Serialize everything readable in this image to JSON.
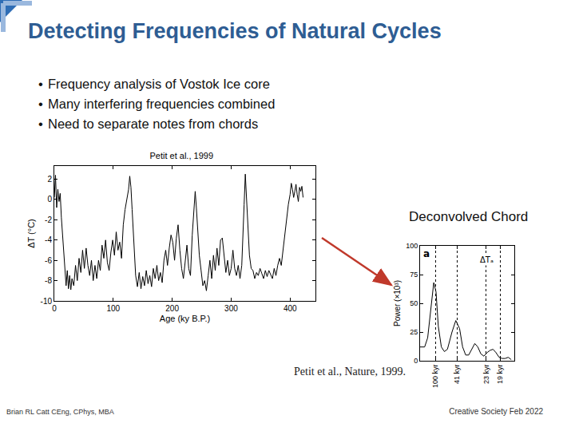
{
  "slide": {
    "title": "Detecting Frequencies of Natural Cycles",
    "bullets": [
      "Frequency analysis of Vostok Ice core",
      "Many interfering frequencies combined",
      "Need to separate notes from chords"
    ],
    "chart_label": "Deconvolved Chord",
    "source": "Petit et al., Nature, 1999.",
    "footer_left": "Brian RL Catt CEng, CPhys, MBA",
    "footer_right": "Creative Society Feb 2022"
  },
  "chart_data": [
    {
      "type": "line",
      "title": "Petit et al., 1999",
      "x_label": "Age (ky B.P.)",
      "y_label": "ΔT (°C)",
      "color": "#000000",
      "x": [
        0,
        2,
        4,
        6,
        8,
        10,
        12,
        14,
        16,
        18,
        20,
        22,
        24,
        26,
        28,
        30,
        33,
        36,
        39,
        42,
        45,
        48,
        51,
        54,
        57,
        60,
        63,
        66,
        69,
        72,
        75,
        78,
        81,
        84,
        87,
        90,
        93,
        96,
        99,
        102,
        105,
        108,
        111,
        114,
        117,
        120,
        123,
        126,
        128,
        130,
        132,
        134,
        136,
        138,
        141,
        144,
        147,
        150,
        153,
        156,
        159,
        162,
        165,
        168,
        171,
        174,
        177,
        180,
        183,
        186,
        189,
        192,
        195,
        198,
        201,
        204,
        207,
        210,
        213,
        216,
        219,
        222,
        225,
        228,
        231,
        234,
        237,
        239,
        241,
        243,
        246,
        249,
        252,
        255,
        258,
        261,
        264,
        267,
        270,
        273,
        276,
        279,
        282,
        285,
        288,
        291,
        294,
        297,
        300,
        303,
        306,
        309,
        312,
        315,
        318,
        320,
        322,
        324,
        326,
        328,
        331,
        334,
        337,
        340,
        343,
        346,
        349,
        352,
        355,
        358,
        361,
        364,
        367,
        370,
        373,
        376,
        379,
        382,
        385,
        388,
        391,
        394,
        397,
        400,
        402,
        404,
        406,
        408,
        410,
        412,
        414,
        416,
        418,
        420,
        422
      ],
      "values": [
        0.2,
        2.4,
        -0.8,
        1.0,
        -0.2,
        0.6,
        -1.8,
        -3.5,
        -5.5,
        -7.2,
        -8.5,
        -7.0,
        -8.8,
        -7.5,
        -8.9,
        -7.8,
        -8.5,
        -6.5,
        -8.0,
        -5.8,
        -7.2,
        -5.0,
        -6.8,
        -4.8,
        -6.5,
        -7.5,
        -6.0,
        -8.0,
        -6.5,
        -7.8,
        -6.0,
        -7.0,
        -4.5,
        -5.8,
        -4.0,
        -6.2,
        -7.0,
        -5.2,
        -4.0,
        -5.5,
        -3.2,
        -5.0,
        -4.2,
        -5.8,
        -2.5,
        -1.0,
        0.2,
        1.0,
        2.3,
        1.2,
        -1.0,
        -3.5,
        -5.8,
        -7.5,
        -8.6,
        -7.2,
        -8.8,
        -7.6,
        -8.5,
        -7.0,
        -8.3,
        -7.5,
        -8.6,
        -6.8,
        -7.8,
        -6.5,
        -8.0,
        -7.2,
        -8.2,
        -6.0,
        -5.0,
        -6.5,
        -4.8,
        -3.5,
        -4.2,
        -6.0,
        -3.8,
        -2.5,
        -5.0,
        -6.8,
        -7.8,
        -6.0,
        -4.5,
        -6.8,
        -7.5,
        -3.5,
        -0.5,
        0.8,
        -0.8,
        -3.0,
        -5.5,
        -7.0,
        -8.5,
        -8.0,
        -9.0,
        -7.5,
        -6.0,
        -7.8,
        -5.5,
        -7.0,
        -4.8,
        -6.5,
        -4.0,
        -3.8,
        -5.5,
        -7.2,
        -6.0,
        -7.5,
        -6.8,
        -5.0,
        -6.8,
        -7.5,
        -6.5,
        -7.8,
        -6.5,
        -4.0,
        -0.5,
        2.5,
        0.0,
        -3.0,
        -5.5,
        -6.8,
        -7.0,
        -7.8,
        -7.2,
        -7.5,
        -6.8,
        -7.3,
        -7.8,
        -7.0,
        -7.6,
        -7.0,
        -7.4,
        -7.8,
        -6.8,
        -7.5,
        -6.5,
        -5.8,
        -6.5,
        -5.0,
        -3.5,
        -2.0,
        -0.5,
        0.5,
        1.6,
        1.0,
        0.2,
        0.8,
        1.5,
        0.5,
        -0.2,
        1.2,
        0.8,
        1.3,
        0.2
      ],
      "xlim": [
        0,
        443
      ],
      "xticks": [
        0,
        100,
        200,
        300,
        400
      ],
      "ylim": [
        -10,
        3.3
      ],
      "yticks": [
        -10,
        -8,
        -6,
        -4,
        -2,
        0,
        2
      ],
      "grid": false
    },
    {
      "type": "line",
      "y_label": "Power (×10³)",
      "annotations": [
        "a",
        "ΔTₐ"
      ],
      "color": "#000000",
      "x": [
        0,
        0.003,
        0.005,
        0.007,
        0.009,
        0.0105,
        0.012,
        0.014,
        0.016,
        0.018,
        0.021,
        0.0235,
        0.026,
        0.028,
        0.03,
        0.032,
        0.034,
        0.036,
        0.038,
        0.04,
        0.042,
        0.044,
        0.046,
        0.048,
        0.05,
        0.052,
        0.054,
        0.056,
        0.058,
        0.06
      ],
      "values": [
        12,
        12,
        20,
        45,
        68,
        60,
        30,
        12,
        8,
        10,
        25,
        35,
        28,
        12,
        5,
        5,
        10,
        15,
        12,
        6,
        4,
        7,
        9,
        10,
        7,
        3,
        2,
        2,
        3,
        1
      ],
      "xlim": [
        0,
        0.062
      ],
      "xticks": [
        {
          "value": 0.01,
          "label": "100 kyr"
        },
        {
          "value": 0.0244,
          "label": "41 kyr"
        },
        {
          "value": 0.0435,
          "label": "23 kyr"
        },
        {
          "value": 0.0526,
          "label": "19 kyr"
        }
      ],
      "ylim": [
        0,
        100
      ],
      "yticks": [
        0,
        25,
        50,
        75,
        100
      ],
      "grid": "x"
    }
  ]
}
